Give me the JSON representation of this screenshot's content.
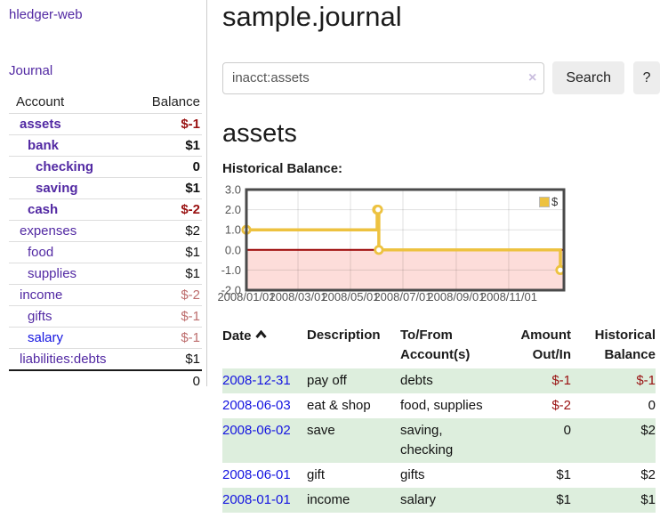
{
  "sidebar": {
    "brand": "hledger-web",
    "journal_label": "Journal",
    "table": {
      "account_header": "Account",
      "balance_header": "Balance",
      "accounts": [
        {
          "name": "assets",
          "balance": "$-1",
          "depth": 1,
          "bold": true,
          "negative": true
        },
        {
          "name": "bank",
          "balance": "$1",
          "depth": 2,
          "bold": true,
          "negative": false
        },
        {
          "name": "checking",
          "balance": "0",
          "depth": 3,
          "bold": true,
          "negative": false
        },
        {
          "name": "saving",
          "balance": "$1",
          "depth": 3,
          "bold": true,
          "negative": false
        },
        {
          "name": "cash",
          "balance": "$-2",
          "depth": 2,
          "bold": true,
          "negative": true
        },
        {
          "name": "expenses",
          "balance": "$2",
          "depth": 1,
          "bold": false,
          "negative": false
        },
        {
          "name": "food",
          "balance": "$1",
          "depth": 2,
          "bold": false,
          "negative": false
        },
        {
          "name": "supplies",
          "balance": "$1",
          "depth": 2,
          "bold": false,
          "negative": false
        },
        {
          "name": "income",
          "balance": "$-2",
          "depth": 1,
          "bold": false,
          "negative": true
        },
        {
          "name": "gifts",
          "balance": "$-1",
          "depth": 2,
          "bold": false,
          "negative": true
        },
        {
          "name": "salary",
          "balance": "$-1",
          "depth": 2,
          "bold": false,
          "negative": true,
          "unvisited": true
        },
        {
          "name": "liabilities:debts",
          "balance": "$1",
          "depth": 1,
          "bold": false,
          "negative": false
        }
      ],
      "total": "0"
    }
  },
  "header": {
    "title": "sample.journal"
  },
  "search": {
    "value": "inacct:assets",
    "clear_icon": "×",
    "button_label": "Search",
    "help_label": "?"
  },
  "account_page": {
    "heading": "assets",
    "chart_label": "Historical Balance:"
  },
  "chart_data": {
    "type": "line",
    "step": true,
    "title": "Historical Balance",
    "series": [
      {
        "name": "$",
        "color": "#EDC240",
        "points": [
          [
            "2008-01-01",
            1
          ],
          [
            "2008-06-01",
            2
          ],
          [
            "2008-06-02",
            2
          ],
          [
            "2008-06-03",
            0
          ],
          [
            "2008-12-31",
            -1
          ]
        ]
      }
    ],
    "ylim": [
      -2,
      3
    ],
    "yticks": [
      "3.0",
      "2.0",
      "1.0",
      "0.0",
      "-1.0",
      "-2.0"
    ],
    "xticks": [
      "2008/01/01",
      "2008/03/01",
      "2008/05/01",
      "2008/07/01",
      "2008/09/01",
      "2008/11/01"
    ],
    "legend_label": "$",
    "legend_position": "top-right",
    "grid": true,
    "negative_region_color": "#fdddda",
    "zero_line_color": "#990000",
    "border_color": "#4a4a4a",
    "axis_text_color": "#545454"
  },
  "register": {
    "columns": [
      "Date",
      "Description",
      "To/From Account(s)",
      "Amount Out/In",
      "Historical Balance"
    ],
    "sort_icon": "chevron-up",
    "rows": [
      {
        "date": "2008-12-31",
        "description": "pay off",
        "accounts": "debts",
        "amount": "$-1",
        "balance": "$-1",
        "amount_negative": true,
        "balance_negative": true
      },
      {
        "date": "2008-06-03",
        "description": "eat & shop",
        "accounts": "food, supplies",
        "amount": "$-2",
        "balance": "0",
        "amount_negative": true,
        "balance_negative": false
      },
      {
        "date": "2008-06-02",
        "description": "save",
        "accounts": "saving, checking",
        "amount": "0",
        "balance": "$2",
        "amount_negative": false,
        "balance_negative": false
      },
      {
        "date": "2008-06-01",
        "description": "gift",
        "accounts": "gifts",
        "amount": "$1",
        "balance": "$2",
        "amount_negative": false,
        "balance_negative": false
      },
      {
        "date": "2008-01-01",
        "description": "income",
        "accounts": "salary",
        "amount": "$1",
        "balance": "$1",
        "amount_negative": false,
        "balance_negative": false
      }
    ]
  },
  "colors": {
    "accent_purple": "#5229a3",
    "link_blue": "#1414e0",
    "negative_red": "#991111",
    "negative_muted_red": "#bd6d6d",
    "row_stripe_green": "#ddeedd",
    "chart_line_gold": "#EDC240",
    "negative_region_pink": "#fdddda",
    "zero_line_red": "#990000"
  }
}
